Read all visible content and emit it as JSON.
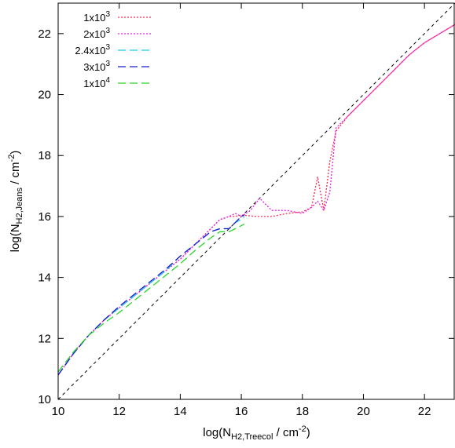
{
  "chart_data": {
    "type": "line",
    "xlabel": {
      "base": "log(N",
      "sub": "H2,Treecol",
      "mid": " / cm",
      "sup": "-2",
      "end": ")"
    },
    "ylabel": {
      "base": "log(N",
      "sub": "H2,Jeans",
      "mid": " / cm",
      "sup": "-2",
      "end": ")"
    },
    "xlim": [
      10,
      23
    ],
    "ylim": [
      10,
      23
    ],
    "xticks": [
      10,
      12,
      14,
      16,
      18,
      20,
      22
    ],
    "yticks": [
      10,
      12,
      14,
      16,
      18,
      20,
      22
    ],
    "xtick_labels": [
      "10",
      "12",
      "14",
      "16",
      "18",
      "20",
      "22"
    ],
    "ytick_labels": [
      "10",
      "12",
      "14",
      "16",
      "18",
      "20",
      "22"
    ],
    "grid": false,
    "legend_position": "top-left",
    "reference_line": {
      "x": [
        10,
        23
      ],
      "y": [
        10,
        23
      ],
      "color": "#000000",
      "style": "dashed"
    },
    "series": [
      {
        "name": {
          "base": "1x10",
          "sup": "3"
        },
        "color": "#ff2a4a",
        "style": "dotted",
        "x": [
          10,
          10.5,
          11,
          11.5,
          12,
          12.5,
          13,
          13.5,
          14,
          14.5,
          15,
          15.3,
          15.6,
          15.8,
          16,
          16.5,
          17,
          17.5,
          18,
          18.3,
          18.5,
          18.7,
          18.9,
          19.1,
          19.5,
          20,
          20.5,
          21,
          21.5,
          22,
          22.5,
          23
        ],
        "y": [
          10.8,
          11.5,
          12.1,
          12.6,
          13.0,
          13.4,
          13.8,
          14.2,
          14.6,
          15.1,
          15.6,
          15.9,
          16.0,
          16.0,
          16.05,
          16.0,
          16.0,
          16.1,
          16.15,
          16.3,
          17.3,
          16.2,
          17.8,
          18.8,
          19.3,
          19.8,
          20.3,
          20.8,
          21.3,
          21.7,
          22.0,
          22.3
        ]
      },
      {
        "name": {
          "base": "2x10",
          "sup": "3"
        },
        "color": "#e81ee8",
        "style": "dotted",
        "x": [
          10,
          10.5,
          11,
          11.5,
          12,
          12.5,
          13,
          13.5,
          14,
          14.5,
          15,
          15.3,
          15.6,
          15.8,
          16,
          16.3,
          16.6,
          17,
          17.5,
          18,
          18.3,
          18.5,
          18.7,
          18.9,
          19.1,
          19.5,
          20,
          20.5,
          21,
          21.5,
          22,
          22.5,
          23
        ],
        "y": [
          10.8,
          11.5,
          12.1,
          12.6,
          13.0,
          13.4,
          13.8,
          14.2,
          14.6,
          15.1,
          15.6,
          15.9,
          16.0,
          16.1,
          16.0,
          16.2,
          16.6,
          16.2,
          16.2,
          16.1,
          16.3,
          16.5,
          16.2,
          16.8,
          18.9,
          19.3,
          19.8,
          20.3,
          20.8,
          21.3,
          21.7,
          22.0,
          22.3
        ]
      },
      {
        "name": {
          "base": "2.4x10",
          "sup": "3"
        },
        "color": "#28c8e6",
        "style": "dashed",
        "x": [
          10,
          10.5,
          11,
          11.5,
          12,
          12.5,
          13,
          13.5,
          14,
          14.5,
          15,
          15.3,
          15.6,
          15.8,
          16,
          16.1
        ],
        "y": [
          10.8,
          11.5,
          12.1,
          12.6,
          13.0,
          13.4,
          13.8,
          14.2,
          14.7,
          15.1,
          15.5,
          15.6,
          15.6,
          15.8,
          15.9,
          16.0
        ]
      },
      {
        "name": {
          "base": "3x10",
          "sup": "3"
        },
        "color": "#1a1acc",
        "style": "dashed",
        "x": [
          10,
          10.5,
          11,
          11.5,
          12,
          12.5,
          13,
          13.5,
          14,
          14.5,
          15,
          15.3,
          15.6,
          15.8,
          16,
          16.1
        ],
        "y": [
          10.8,
          11.5,
          12.1,
          12.6,
          13.05,
          13.45,
          13.85,
          14.25,
          14.7,
          15.1,
          15.5,
          15.6,
          15.6,
          15.8,
          16.0,
          16.05
        ]
      },
      {
        "name": {
          "base": "1x10",
          "sup": "4"
        },
        "color": "#2ad42a",
        "style": "dashed",
        "x": [
          10,
          10.5,
          11,
          11.5,
          12,
          12.5,
          13,
          13.5,
          14,
          14.5,
          15,
          15.3,
          15.6,
          15.8,
          16,
          16.1
        ],
        "y": [
          10.9,
          11.55,
          12.1,
          12.5,
          12.85,
          13.25,
          13.65,
          14.05,
          14.45,
          14.9,
          15.3,
          15.5,
          15.5,
          15.6,
          15.7,
          15.75
        ]
      }
    ]
  }
}
